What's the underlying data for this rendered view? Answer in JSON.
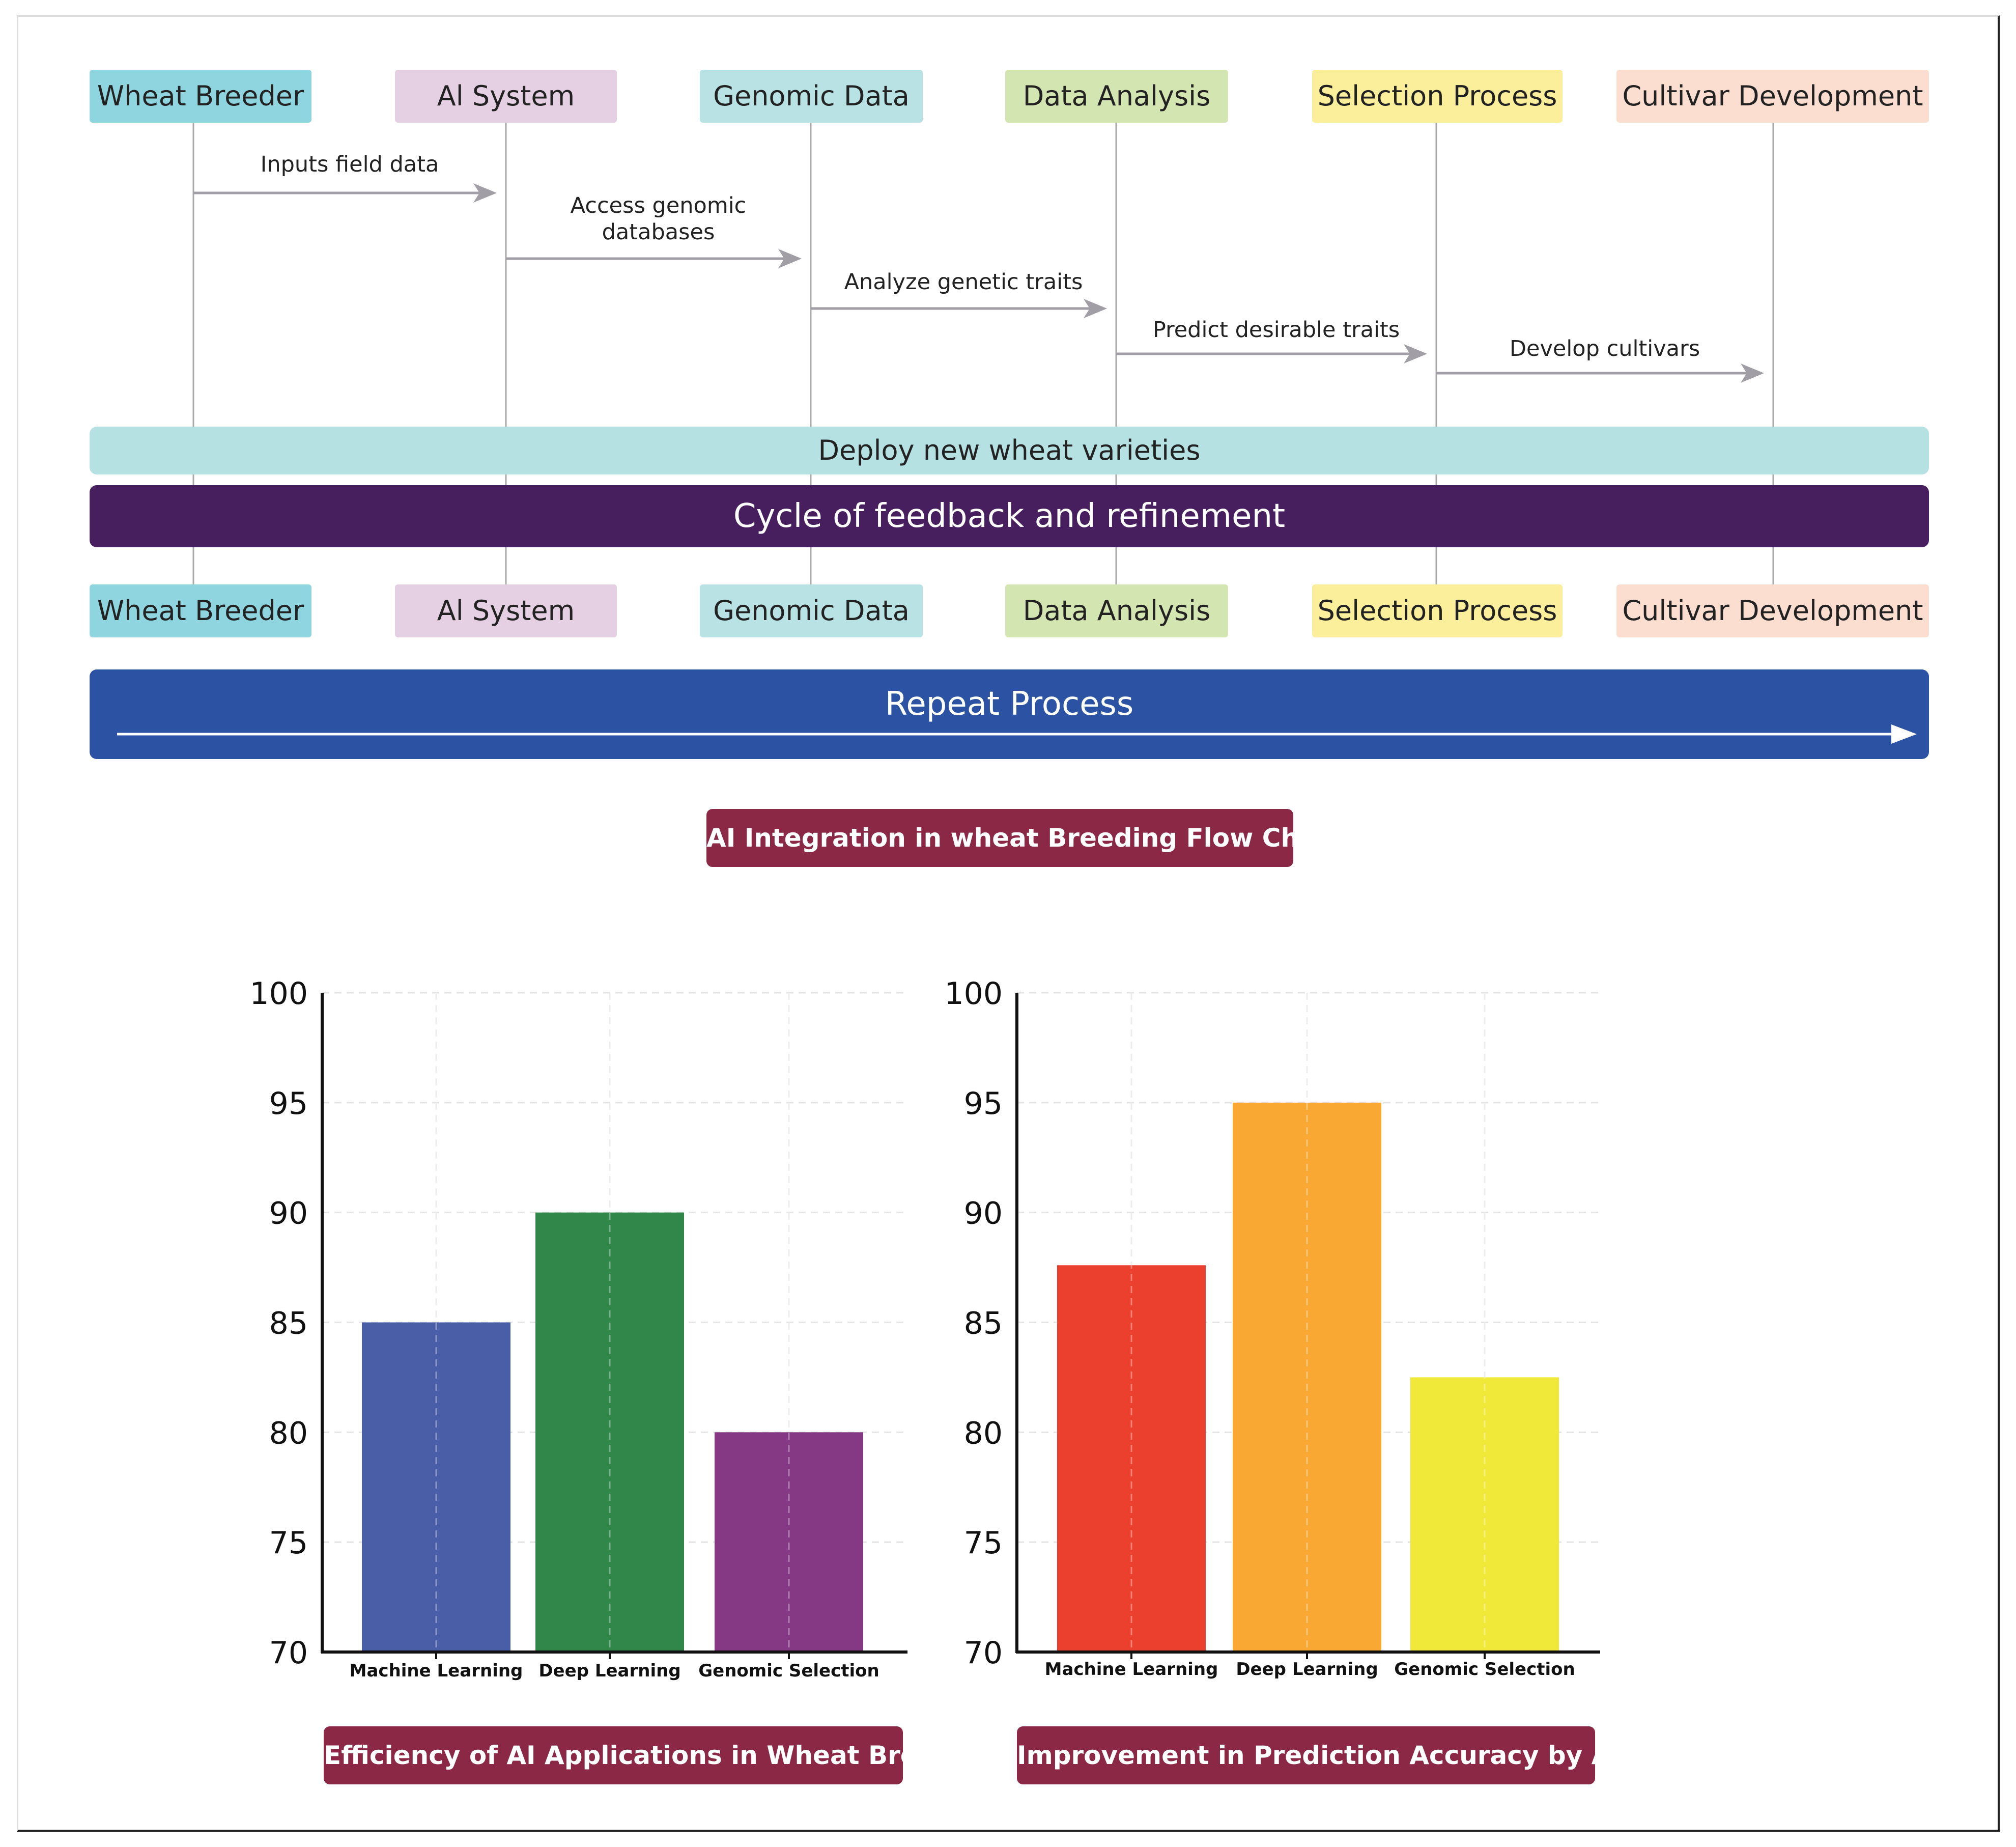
{
  "flowchart": {
    "actors": [
      "Wheat Breeder",
      "Al System",
      "Genomic Data",
      "Data Analysis",
      "Selection Process",
      "Cultivar Development"
    ],
    "actor_colors": [
      "#8fd5e0",
      "#e5cfe3",
      "#b8e2e4",
      "#d3e5b1",
      "#fbef9b",
      "#fbded0"
    ],
    "messages": [
      {
        "from": 0,
        "to": 1,
        "label": "Inputs field data"
      },
      {
        "from": 1,
        "to": 2,
        "label": "Access genomic\ndatabases"
      },
      {
        "from": 2,
        "to": 3,
        "label": "Analyze genetic traits"
      },
      {
        "from": 3,
        "to": 4,
        "label": "Predict desirable traits"
      },
      {
        "from": 4,
        "to": 5,
        "label": "Develop cultivars"
      }
    ],
    "deploy_label": "Deploy new wheat varieties",
    "cycle_label": "Cycle of feedback and refinement",
    "repeat_label": "Repeat Process",
    "colors": {
      "deploy": "#b6e1e3",
      "cycle": "#471f5e",
      "repeat": "#2b52a3",
      "title": "#8a2846",
      "arrow": "#a19ea5"
    },
    "title": "AI Integration in wheat Breeding Flow Chart"
  },
  "chart_data": [
    {
      "type": "bar",
      "title": "Efficiency of AI Applications in Wheat Breeding",
      "categories": [
        "Machine Learning",
        "Deep Learning",
        "Genomic Selection"
      ],
      "values": [
        85,
        90,
        80
      ],
      "colors": [
        "#4a5ea8",
        "#31874a",
        "#853985"
      ],
      "ylim": [
        70,
        100
      ],
      "yticks": [
        70,
        75,
        80,
        85,
        90,
        95,
        100
      ],
      "xlabel": "",
      "ylabel": "",
      "grid": true
    },
    {
      "type": "bar",
      "title": "Improvement in Prediction Accuracy by AI",
      "categories": [
        "Machine Learning",
        "Deep Learning",
        "Genomic Selection"
      ],
      "values": [
        87.6,
        95,
        82.5
      ],
      "colors": [
        "#ec402f",
        "#f8a833",
        "#f1e93a"
      ],
      "ylim": [
        70,
        100
      ],
      "yticks": [
        70,
        75,
        80,
        85,
        90,
        95,
        100
      ],
      "xlabel": "",
      "ylabel": "",
      "grid": true
    }
  ]
}
